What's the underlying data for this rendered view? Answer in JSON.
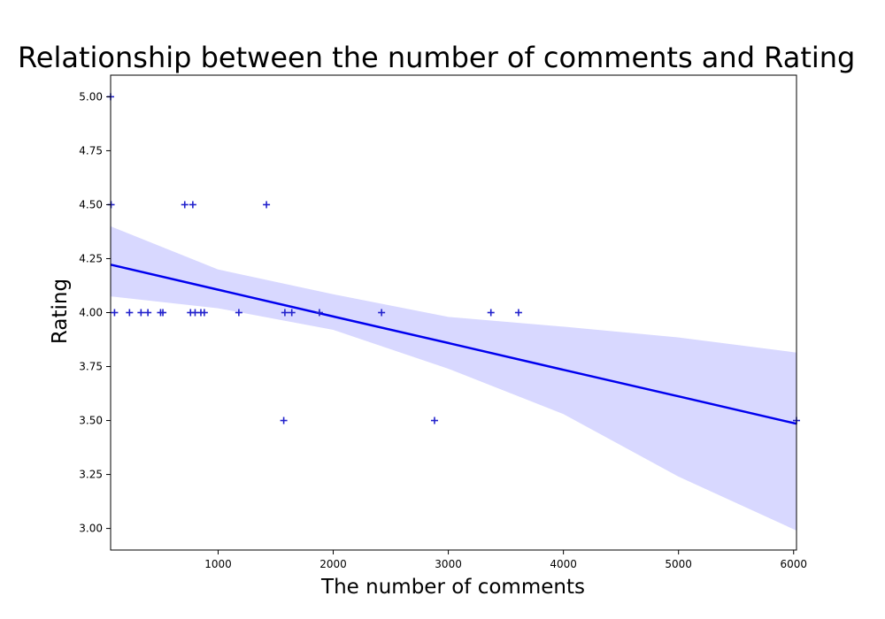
{
  "chart_data": {
    "type": "scatter",
    "title": "Relationship between the number of comments and Rating",
    "xlabel": "The number of comments",
    "ylabel": "Rating",
    "xlim": [
      66,
      6025
    ],
    "ylim": [
      2.9,
      5.1
    ],
    "xticks": [
      1000,
      2000,
      3000,
      4000,
      5000,
      6000
    ],
    "xtick_labels": [
      "1000",
      "2000",
      "3000",
      "4000",
      "5000",
      "6000"
    ],
    "yticks": [
      3.0,
      3.25,
      3.5,
      3.75,
      4.0,
      4.25,
      4.5,
      4.75,
      5.0
    ],
    "ytick_labels": [
      "3.00",
      "3.25",
      "3.50",
      "3.75",
      "4.00",
      "4.25",
      "4.50",
      "4.75",
      "5.00"
    ],
    "grid": false,
    "legend": "none",
    "marker": "+",
    "colors": {
      "points": "#2222cc",
      "line": "#0000ee",
      "band": "#d8d8ff"
    },
    "series": [
      {
        "x": [
          66,
          70,
          100,
          230,
          330,
          390,
          500,
          520,
          710,
          760,
          780,
          800,
          850,
          880,
          1180,
          1420,
          1570,
          1580,
          1640,
          1880,
          2420,
          2880,
          3370,
          3610,
          6025
        ],
        "y": [
          5.0,
          4.5,
          4.0,
          4.0,
          4.0,
          4.0,
          4.0,
          4.0,
          4.5,
          4.0,
          4.5,
          4.0,
          4.0,
          4.0,
          4.0,
          4.5,
          3.5,
          4.0,
          4.0,
          4.0,
          4.0,
          3.5,
          4.0,
          4.0,
          3.5
        ]
      }
    ],
    "regression": {
      "x": [
        66,
        1000,
        2000,
        3000,
        4000,
        5000,
        6025
      ],
      "y": [
        4.222,
        4.106,
        3.982,
        3.859,
        3.735,
        3.612,
        3.485
      ],
      "ci_lower": [
        4.075,
        4.02,
        3.92,
        3.74,
        3.53,
        3.24,
        2.99
      ],
      "ci_upper": [
        4.4,
        4.2,
        4.085,
        3.98,
        3.935,
        3.885,
        3.815
      ]
    }
  }
}
